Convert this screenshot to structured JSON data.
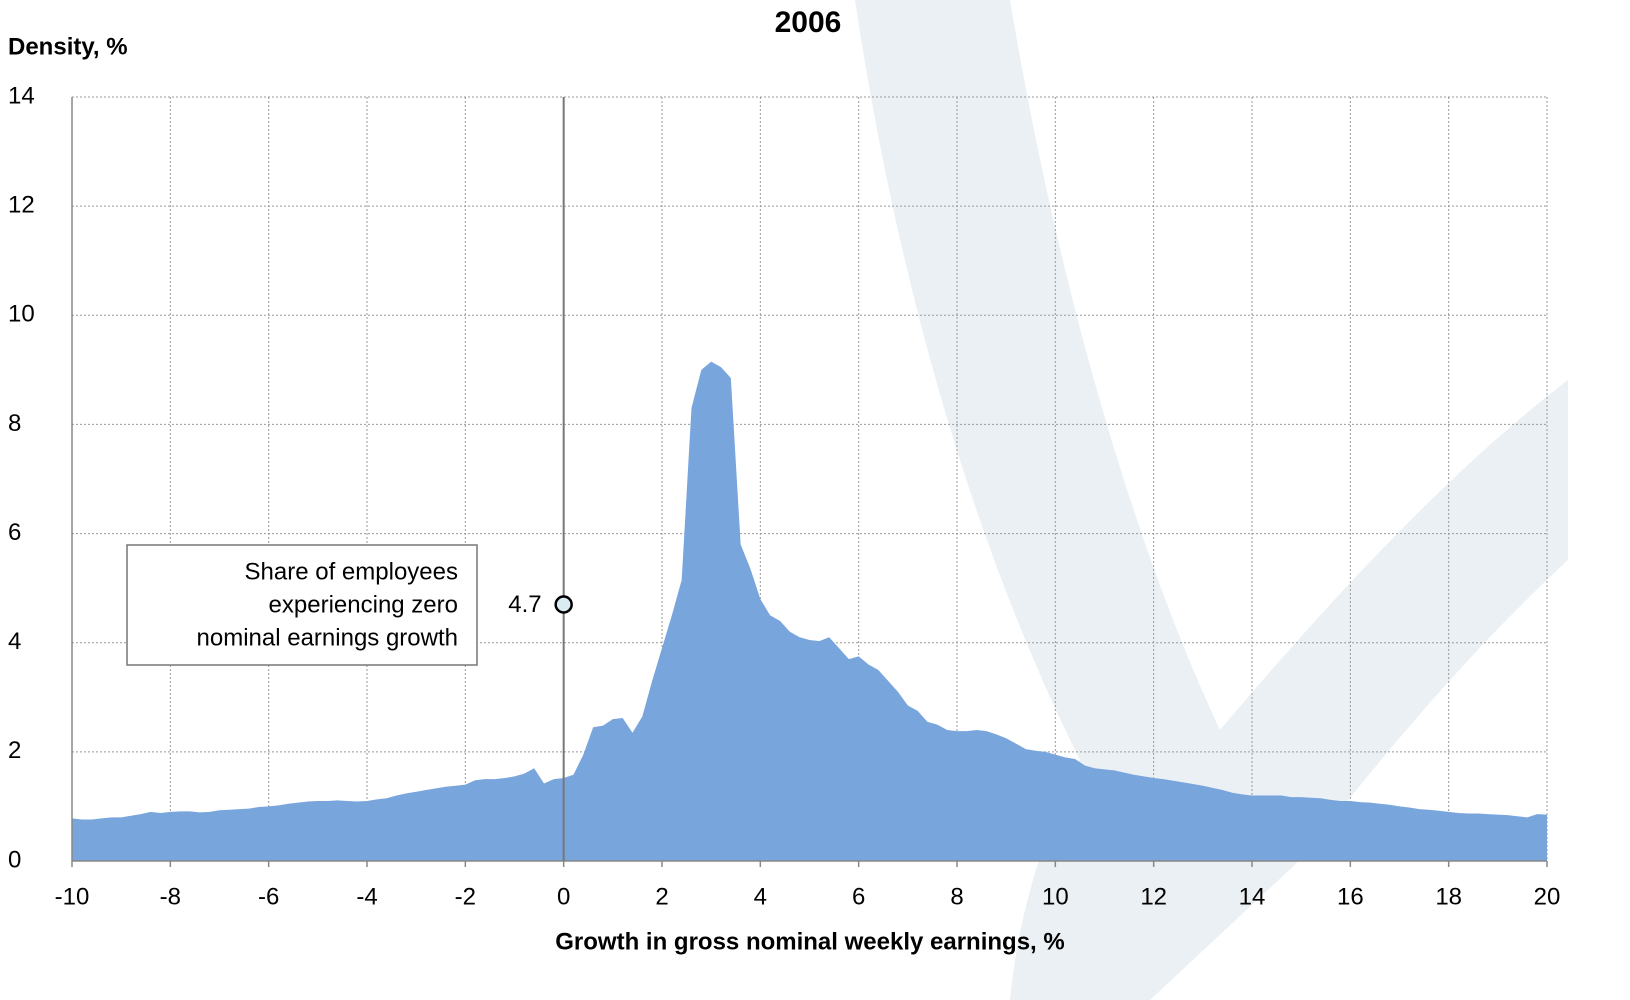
{
  "chart_data": {
    "type": "area",
    "title": "2006",
    "y_label": "Density, %",
    "x_label": "Growth in gross nominal weekly earnings, %",
    "color": "#79a5dd",
    "grid": true,
    "xlim": [
      -10,
      20
    ],
    "ylim": [
      0,
      14
    ],
    "xticks": [
      -10,
      -8,
      -6,
      -4,
      -2,
      0,
      2,
      4,
      6,
      8,
      10,
      12,
      14,
      16,
      18,
      20
    ],
    "yticks": [
      0,
      2,
      4,
      6,
      8,
      10,
      12,
      14
    ],
    "vline": 0,
    "marker": {
      "x": 0,
      "y": 4.7
    },
    "annotation": [
      "Share of employees",
      "experiencing zero",
      "nominal earnings growth"
    ],
    "x": [
      -10,
      -9.8,
      -9.6,
      -9.4,
      -9.2,
      -9,
      -8.8,
      -8.6,
      -8.4,
      -8.2,
      -8,
      -7.8,
      -7.6,
      -7.4,
      -7.2,
      -7,
      -6.8,
      -6.6,
      -6.4,
      -6.2,
      -6,
      -5.8,
      -5.6,
      -5.4,
      -5.2,
      -5,
      -4.8,
      -4.6,
      -4.4,
      -4.2,
      -4,
      -3.8,
      -3.6,
      -3.4,
      -3.2,
      -3,
      -2.8,
      -2.6,
      -2.4,
      -2.2,
      -2,
      -1.8,
      -1.6,
      -1.4,
      -1.2,
      -1,
      -0.8,
      -0.6,
      -0.4,
      -0.2,
      0,
      0.2,
      0.4,
      0.6,
      0.8,
      1,
      1.2,
      1.4,
      1.6,
      1.8,
      2,
      2.2,
      2.4,
      2.6,
      2.8,
      3,
      3.2,
      3.4,
      3.6,
      3.8,
      4,
      4.2,
      4.4,
      4.6,
      4.8,
      5,
      5.2,
      5.4,
      5.6,
      5.8,
      6,
      6.2,
      6.4,
      6.6,
      6.8,
      7,
      7.2,
      7.4,
      7.6,
      7.8,
      8,
      8.2,
      8.4,
      8.6,
      8.8,
      9,
      9.2,
      9.4,
      9.6,
      9.8,
      10,
      10.2,
      10.4,
      10.6,
      10.8,
      11,
      11.2,
      11.4,
      11.6,
      11.8,
      12,
      12.2,
      12.4,
      12.6,
      12.8,
      13,
      13.2,
      13.4,
      13.6,
      13.8,
      14,
      14.2,
      14.4,
      14.6,
      14.8,
      15,
      15.2,
      15.4,
      15.6,
      15.8,
      16,
      16.2,
      16.4,
      16.6,
      16.8,
      17,
      17.2,
      17.4,
      17.6,
      17.8,
      18,
      18.2,
      18.4,
      18.6,
      18.8,
      19,
      19.2,
      19.4,
      19.6,
      19.8,
      20
    ],
    "values": [
      0.78,
      0.76,
      0.76,
      0.78,
      0.8,
      0.8,
      0.83,
      0.86,
      0.9,
      0.88,
      0.9,
      0.91,
      0.91,
      0.89,
      0.9,
      0.93,
      0.94,
      0.95,
      0.96,
      0.99,
      1.0,
      1.02,
      1.05,
      1.07,
      1.09,
      1.1,
      1.1,
      1.11,
      1.1,
      1.09,
      1.1,
      1.13,
      1.15,
      1.2,
      1.24,
      1.27,
      1.3,
      1.33,
      1.36,
      1.38,
      1.4,
      1.48,
      1.5,
      1.5,
      1.52,
      1.55,
      1.6,
      1.7,
      1.42,
      1.5,
      1.52,
      1.58,
      1.95,
      2.45,
      2.48,
      2.6,
      2.62,
      2.35,
      2.65,
      3.3,
      3.9,
      4.5,
      5.15,
      8.3,
      9.0,
      9.15,
      9.05,
      8.85,
      5.8,
      5.35,
      4.8,
      4.5,
      4.4,
      4.2,
      4.1,
      4.05,
      4.03,
      4.1,
      3.9,
      3.7,
      3.75,
      3.6,
      3.5,
      3.3,
      3.1,
      2.85,
      2.75,
      2.55,
      2.5,
      2.4,
      2.38,
      2.38,
      2.4,
      2.38,
      2.32,
      2.25,
      2.15,
      2.05,
      2.02,
      2.0,
      1.95,
      1.9,
      1.87,
      1.75,
      1.7,
      1.68,
      1.66,
      1.62,
      1.58,
      1.55,
      1.52,
      1.5,
      1.47,
      1.44,
      1.41,
      1.38,
      1.34,
      1.3,
      1.25,
      1.22,
      1.2,
      1.2,
      1.2,
      1.2,
      1.17,
      1.17,
      1.16,
      1.15,
      1.12,
      1.1,
      1.1,
      1.08,
      1.07,
      1.05,
      1.03,
      1.0,
      0.98,
      0.95,
      0.94,
      0.92,
      0.9,
      0.88,
      0.87,
      0.87,
      0.86,
      0.85,
      0.84,
      0.82,
      0.8,
      0.86,
      0.85
    ]
  }
}
